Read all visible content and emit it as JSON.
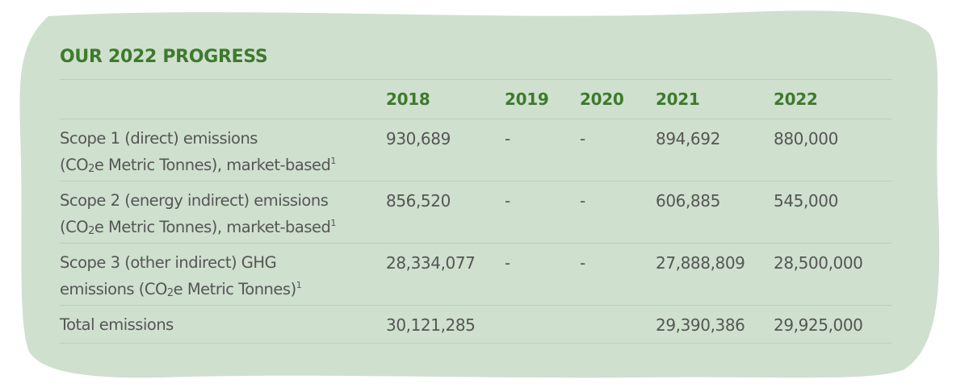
{
  "colors": {
    "card_background": "#cfe0cf",
    "heading": "#3e7a2c",
    "text": "#555555",
    "rule": "#b9d2b8"
  },
  "heading": "OUR 2022 PROGRESS",
  "table": {
    "columns": [
      "",
      "2018",
      "2019",
      "2020",
      "2021",
      "2022"
    ],
    "rows": [
      {
        "label_line1": "Scope 1 (direct) emissions",
        "label_line2_pre": "(CO",
        "label_line2_sub": "2",
        "label_line2_post": "e Metric Tonnes), market-based",
        "footnote": "1",
        "values": [
          "930,689",
          "-",
          "-",
          "894,692",
          "880,000"
        ]
      },
      {
        "label_line1": "Scope 2 (energy indirect) emissions",
        "label_line2_pre": "(CO",
        "label_line2_sub": "2",
        "label_line2_post": "e Metric Tonnes), market-based",
        "footnote": "1",
        "values": [
          "856,520",
          "-",
          "-",
          "606,885",
          "545,000"
        ]
      },
      {
        "label_line1": "Scope 3 (other indirect) GHG",
        "label_line2_pre": "emissions (CO",
        "label_line2_sub": "2",
        "label_line2_post": "e Metric Tonnes)",
        "footnote": "1",
        "values": [
          "28,334,077",
          "-",
          "-",
          "27,888,809",
          "28,500,000"
        ]
      },
      {
        "label_line1": "Total emissions",
        "values": [
          "30,121,285",
          "",
          "",
          "29,390,386",
          "29,925,000"
        ]
      }
    ]
  }
}
